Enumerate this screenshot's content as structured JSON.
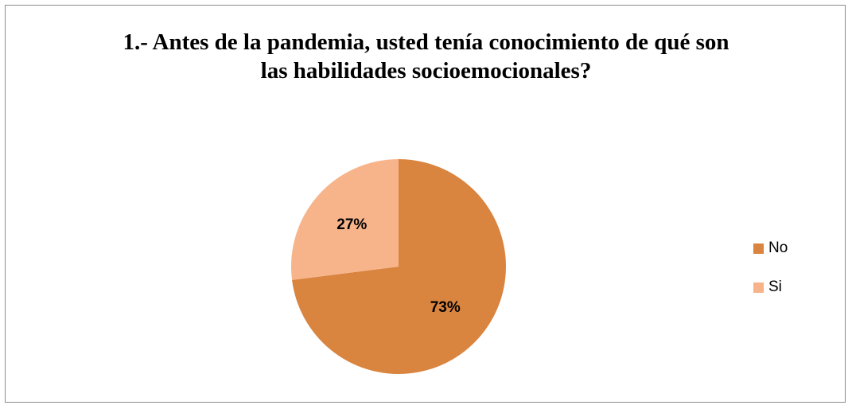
{
  "chart_data": {
    "type": "pie",
    "title_lines": [
      "1.- Antes de la pandemia, usted tenía conocimiento de qué son",
      "las habilidades socioemocionales?"
    ],
    "categories": [
      "No",
      "Si"
    ],
    "values": [
      73,
      27
    ],
    "data_labels": [
      "73%",
      "27%"
    ],
    "colors": [
      "#d9843f",
      "#f7b48b"
    ],
    "legend_position": "right"
  }
}
